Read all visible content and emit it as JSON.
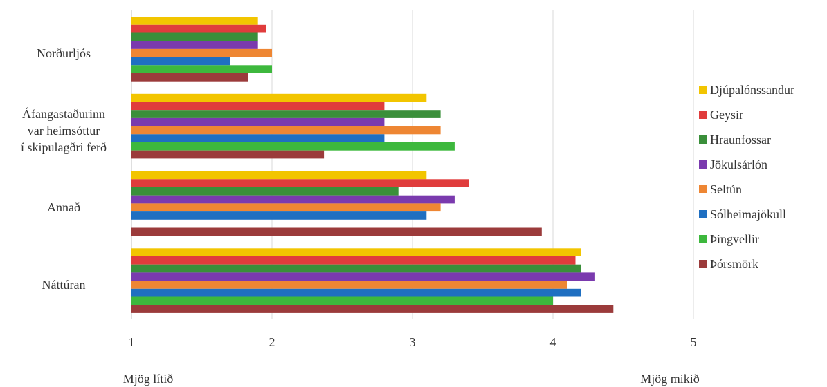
{
  "chart_data": {
    "type": "bar",
    "orientation": "horizontal",
    "categories": [
      "Norðurljós",
      "Áfangastaðurinn var heimsóttur í skipulagðri ferð",
      "Annað",
      "Náttúran"
    ],
    "category_lines": [
      [
        "Norðurljós"
      ],
      [
        "Áfangastaðurinn",
        "var heimsóttur",
        "í skipulagðri ferð"
      ],
      [
        "Annað"
      ],
      [
        "Náttúran"
      ]
    ],
    "series": [
      {
        "name": "Djúpalónssandur",
        "color": "#F2C500",
        "values": [
          1.9,
          3.1,
          3.1,
          4.2
        ]
      },
      {
        "name": "Geysir",
        "color": "#E03C3C",
        "values": [
          1.96,
          2.8,
          3.4,
          4.16
        ]
      },
      {
        "name": "Hraunfossar",
        "color": "#3A8F3A",
        "values": [
          1.9,
          3.2,
          2.9,
          4.2
        ]
      },
      {
        "name": "Jökulsárlón",
        "color": "#7A3AAE",
        "values": [
          1.9,
          2.8,
          3.3,
          4.3
        ]
      },
      {
        "name": "Seltún",
        "color": "#EE8633",
        "values": [
          2.0,
          3.2,
          3.2,
          4.1
        ]
      },
      {
        "name": "Sólheimajökull",
        "color": "#1F6FC1",
        "values": [
          1.7,
          2.8,
          3.1,
          4.2
        ]
      },
      {
        "name": "Þingvellir",
        "color": "#3DB83D",
        "values": [
          2.0,
          3.3,
          null,
          4.0
        ]
      },
      {
        "name": "Þórsmörk",
        "color": "#9B3B3B",
        "values": [
          1.83,
          2.37,
          3.92,
          4.43
        ]
      }
    ],
    "xlim": [
      1,
      5
    ],
    "xticks": [
      "1",
      "2",
      "3",
      "4",
      "5"
    ],
    "x_end_labels": {
      "min": "Mjög lítið",
      "max": "Mjög mikið"
    },
    "grid": true,
    "legend_position": "right"
  }
}
